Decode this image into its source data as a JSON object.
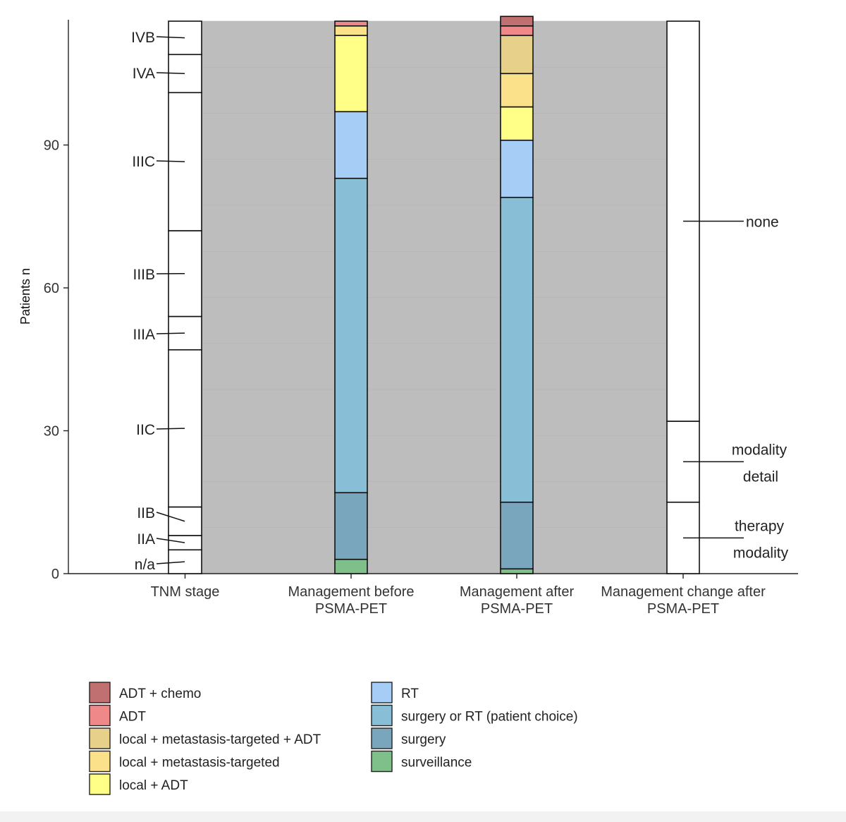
{
  "chart_data": {
    "type": "alluvial",
    "ylabel": "Patients n",
    "ylim": [
      0,
      116
    ],
    "y_ticks": [
      0,
      30,
      60,
      90
    ],
    "axes": [
      {
        "label_lines": [
          "TNM stage"
        ]
      },
      {
        "label_lines": [
          "Management before",
          "PSMA-PET"
        ]
      },
      {
        "label_lines": [
          "Management after",
          "PSMA-PET"
        ]
      },
      {
        "label_lines": [
          "Management change after",
          "PSMA-PET"
        ]
      }
    ],
    "strata": {
      "tnm_stage": [
        {
          "label": "n/a",
          "value": 5
        },
        {
          "label": "IIA",
          "value": 3
        },
        {
          "label": "IIB",
          "value": 6
        },
        {
          "label": "IIC",
          "value": 33
        },
        {
          "label": "IIIA",
          "value": 7
        },
        {
          "label": "IIIB",
          "value": 18
        },
        {
          "label": "IIIC",
          "value": 29
        },
        {
          "label": "IVA",
          "value": 8
        },
        {
          "label": "IVB",
          "value": 7
        }
      ],
      "management_before": [
        {
          "category": "surveillance",
          "value": 3
        },
        {
          "category": "surgery",
          "value": 14
        },
        {
          "category": "surgery or RT (patient choice)",
          "value": 66
        },
        {
          "category": "RT",
          "value": 14
        },
        {
          "category": "local + ADT",
          "value": 16
        },
        {
          "category": "local + metastasis-targeted",
          "value": 2
        },
        {
          "category": "ADT",
          "value": 1
        }
      ],
      "management_after": [
        {
          "category": "surveillance",
          "value": 1
        },
        {
          "category": "surgery",
          "value": 14
        },
        {
          "category": "surgery or RT (patient choice)",
          "value": 64
        },
        {
          "category": "RT",
          "value": 12
        },
        {
          "category": "local + ADT",
          "value": 7
        },
        {
          "category": "local + metastasis-targeted",
          "value": 7
        },
        {
          "category": "local + metastasis-targeted + ADT",
          "value": 8
        },
        {
          "category": "ADT",
          "value": 2
        },
        {
          "category": "ADT + chemo",
          "value": 2
        }
      ],
      "management_change": [
        {
          "label_lines": [
            "therapy",
            "modality"
          ],
          "value": 15
        },
        {
          "label_lines": [
            "modality",
            "detail"
          ],
          "value": 17
        },
        {
          "label_lines": [
            "none"
          ],
          "value": 84
        }
      ]
    },
    "legend": {
      "placement": "bottom",
      "items": [
        {
          "label": "ADT + chemo",
          "color": "#c07070"
        },
        {
          "label": "ADT",
          "color": "#ef8888"
        },
        {
          "label": "local + metastasis-targeted + ADT",
          "color": "#e6d08a"
        },
        {
          "label": "local + metastasis-targeted",
          "color": "#fbe18a"
        },
        {
          "label": "local + ADT",
          "color": "#ffff88"
        },
        {
          "label": "RT",
          "color": "#a6cdf6"
        },
        {
          "label": "surgery or RT (patient choice)",
          "color": "#88bfd6"
        },
        {
          "label": "surgery",
          "color": "#7aa6bd"
        },
        {
          "label": "surveillance",
          "color": "#7fbf8a"
        }
      ]
    },
    "flow_color": "#bdbdbd"
  }
}
